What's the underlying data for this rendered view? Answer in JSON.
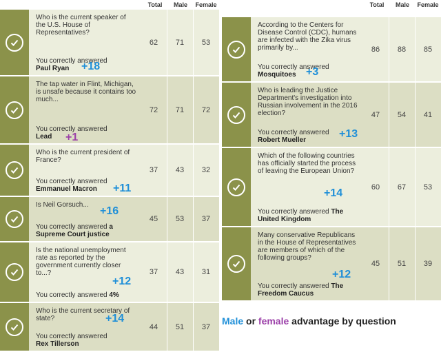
{
  "headers": {
    "total": "Total",
    "male": "Male",
    "female": "Female"
  },
  "answer_prefix": "You correctly answered",
  "left": [
    {
      "question": "Who is the current speaker of the U.S. House of Representatives?",
      "answer": "Paul Ryan",
      "total": "62",
      "male": "71",
      "female": "53",
      "advantage": "+18",
      "adv_sex": "male"
    },
    {
      "question": "The tap water in Flint, Michigan, is unsafe because it contains too much...",
      "answer": "Lead",
      "total": "72",
      "male": "71",
      "female": "72",
      "advantage": "+1",
      "adv_sex": "female"
    },
    {
      "question": "Who is the current president of France?",
      "answer": "Emmanuel Macron",
      "total": "37",
      "male": "43",
      "female": "32",
      "advantage": "+11",
      "adv_sex": "male"
    },
    {
      "question": "Is Neil Gorsuch...",
      "answer": "a Supreme Court justice",
      "total": "45",
      "male": "53",
      "female": "37",
      "advantage": "+16",
      "adv_sex": "male"
    },
    {
      "question": "Is the national unemployment rate as reported by the government currently closer to...?",
      "answer": "4%",
      "total": "37",
      "male": "43",
      "female": "31",
      "advantage": "+12",
      "adv_sex": "male"
    },
    {
      "question": "Who is the current secretary of state?",
      "answer": "Rex Tillerson",
      "total": "44",
      "male": "51",
      "female": "37",
      "advantage": "+14",
      "adv_sex": "male"
    }
  ],
  "right": [
    {
      "question": "According to the Centers for Disease Control (CDC), humans are infected with the Zika virus primarily by...",
      "answer": "Mosquitoes",
      "total": "86",
      "male": "88",
      "female": "85",
      "advantage": "+3",
      "adv_sex": "male"
    },
    {
      "question": "Who is leading the Justice Department's investigation into Russian involvement in the 2016 election?",
      "answer": "Robert Mueller",
      "total": "47",
      "male": "54",
      "female": "41",
      "advantage": "+13",
      "adv_sex": "male"
    },
    {
      "question": "Which of the following countries has officially started the process of leaving the European Union?",
      "answer": "The United Kingdom",
      "total": "60",
      "male": "67",
      "female": "53",
      "advantage": "+14",
      "adv_sex": "male"
    },
    {
      "question": "Many conservative Republicans in the House of Representatives are members of which of the following groups?",
      "answer": "The Freedom Caucus",
      "total": "45",
      "male": "51",
      "female": "39",
      "advantage": "+12",
      "adv_sex": "male"
    }
  ],
  "legend": {
    "male": "Male",
    "or": "or",
    "female": "female",
    "rest": "advantage by question"
  },
  "colors": {
    "check_bg": "#8b924a",
    "male": "#1f8fd8",
    "female": "#9b3fa8"
  }
}
